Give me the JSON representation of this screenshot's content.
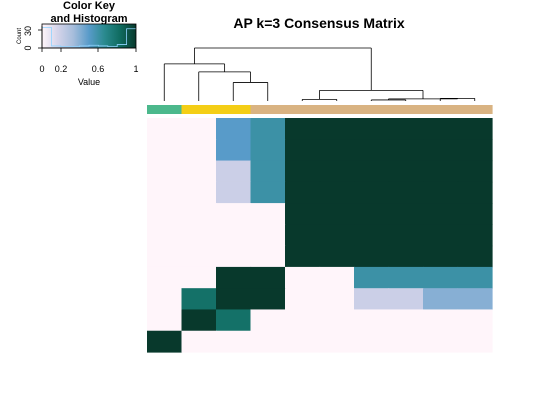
{
  "chart_data": {
    "type": "heatmap",
    "title": "AP k=3 Consensus Matrix",
    "color_key": {
      "title_line1": "Color Key",
      "title_line2": "and Histogram",
      "xlabel": "Value",
      "ylabel": "Count",
      "x_ticks": [
        "0",
        "0.2",
        "0.6",
        "1"
      ],
      "y_ticks": [
        "0",
        "30"
      ],
      "gradient": [
        "#fff5fa",
        "#d4d4ea",
        "#a6bddb",
        "#589bc9",
        "#2a8a8e",
        "#0f6b5f",
        "#08392c"
      ]
    },
    "class_colors": [
      "#4cb88c",
      "#f4ce16",
      "#d9b382"
    ],
    "column_classes": [
      0,
      1,
      1,
      2,
      2,
      2,
      2,
      2,
      2,
      2
    ],
    "matrix": [
      [
        0,
        0,
        0.5,
        0.6,
        1,
        1,
        1,
        1,
        1,
        1
      ],
      [
        0,
        0,
        0.5,
        0.6,
        1,
        1,
        1,
        1,
        1,
        1
      ],
      [
        0,
        0,
        0.2,
        0.6,
        1,
        1,
        1,
        1,
        1,
        1
      ],
      [
        0,
        0,
        0.2,
        0.6,
        1,
        1,
        1,
        1,
        1,
        1
      ],
      [
        0,
        0,
        0,
        0,
        1,
        1,
        1,
        1,
        1,
        1
      ],
      [
        0,
        0,
        0,
        0,
        1,
        1,
        1,
        1,
        1,
        1
      ],
      [
        0,
        0,
        0,
        0,
        1,
        1,
        1,
        1,
        1,
        1
      ],
      [
        0,
        0,
        1,
        1,
        0,
        0,
        0.6,
        0.6,
        0.6,
        0.6
      ],
      [
        0,
        0.8,
        1,
        1,
        0,
        0,
        0.2,
        0.2,
        0.4,
        0.4
      ],
      [
        0,
        1,
        0.8,
        0,
        0,
        0,
        0,
        0,
        0,
        0
      ],
      [
        1,
        0,
        0,
        0,
        0,
        0,
        0,
        0,
        0,
        0
      ]
    ],
    "dendrogram": {
      "heights": {
        "h_root": 1.0,
        "h_left": 0.7,
        "h_ab": 0.55,
        "h_cd": 0.35,
        "h_right": 0.2
      }
    },
    "histogram": [
      30,
      3,
      2,
      2,
      3,
      4,
      3,
      2,
      5,
      28
    ]
  }
}
